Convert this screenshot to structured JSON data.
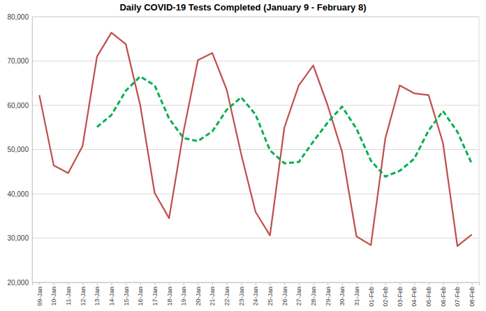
{
  "chart_data": {
    "type": "line",
    "title": "Daily COVID-19 Tests Completed (January 9 - February 8)",
    "categories": [
      "09-Jan",
      "10-Jan",
      "11-Jan",
      "12-Jan",
      "13-Jan",
      "14-Jan",
      "15-Jan",
      "16-Jan",
      "17-Jan",
      "18-Jan",
      "19-Jan",
      "20-Jan",
      "21-Jan",
      "22-Jan",
      "23-Jan",
      "24-Jan",
      "25-Jan",
      "26-Jan",
      "27-Jan",
      "28-Jan",
      "29-Jan",
      "30-Jan",
      "31-Jan",
      "01-Feb",
      "02-Feb",
      "03-Feb",
      "04-Feb",
      "05-Feb",
      "06-Feb",
      "07-Feb",
      "08-Feb"
    ],
    "series": [
      {
        "color": "#c0504d",
        "line_style": "solid",
        "values": [
          62300,
          46400,
          44700,
          50800,
          71000,
          76400,
          73800,
          60000,
          40200,
          34500,
          54000,
          70200,
          71800,
          63500,
          49000,
          35900,
          30600,
          55000,
          64500,
          69000,
          60000,
          49500,
          30400,
          28400,
          52500,
          64500,
          62700,
          62300,
          51500,
          28200,
          30800
        ]
      },
      {
        "color": "#00b050",
        "line_style": "dashed",
        "values": [
          null,
          null,
          null,
          null,
          55100,
          57800,
          63300,
          66500,
          64500,
          57000,
          52600,
          51900,
          54100,
          59000,
          61800,
          57900,
          49800,
          46900,
          47200,
          51800,
          56100,
          59700,
          54700,
          47500,
          43900,
          45200,
          47900,
          54300,
          58700,
          54000,
          46800
        ]
      }
    ],
    "ylim": [
      20000,
      80000
    ],
    "yticks": [
      {
        "value": 20000,
        "label": "20,000"
      },
      {
        "value": 30000,
        "label": "30,000"
      },
      {
        "value": 40000,
        "label": "40,000"
      },
      {
        "value": 50000,
        "label": "50,000"
      },
      {
        "value": 60000,
        "label": "60,000"
      },
      {
        "value": 70000,
        "label": "70,000"
      },
      {
        "value": 80000,
        "label": "80,000"
      }
    ],
    "grid": true
  }
}
